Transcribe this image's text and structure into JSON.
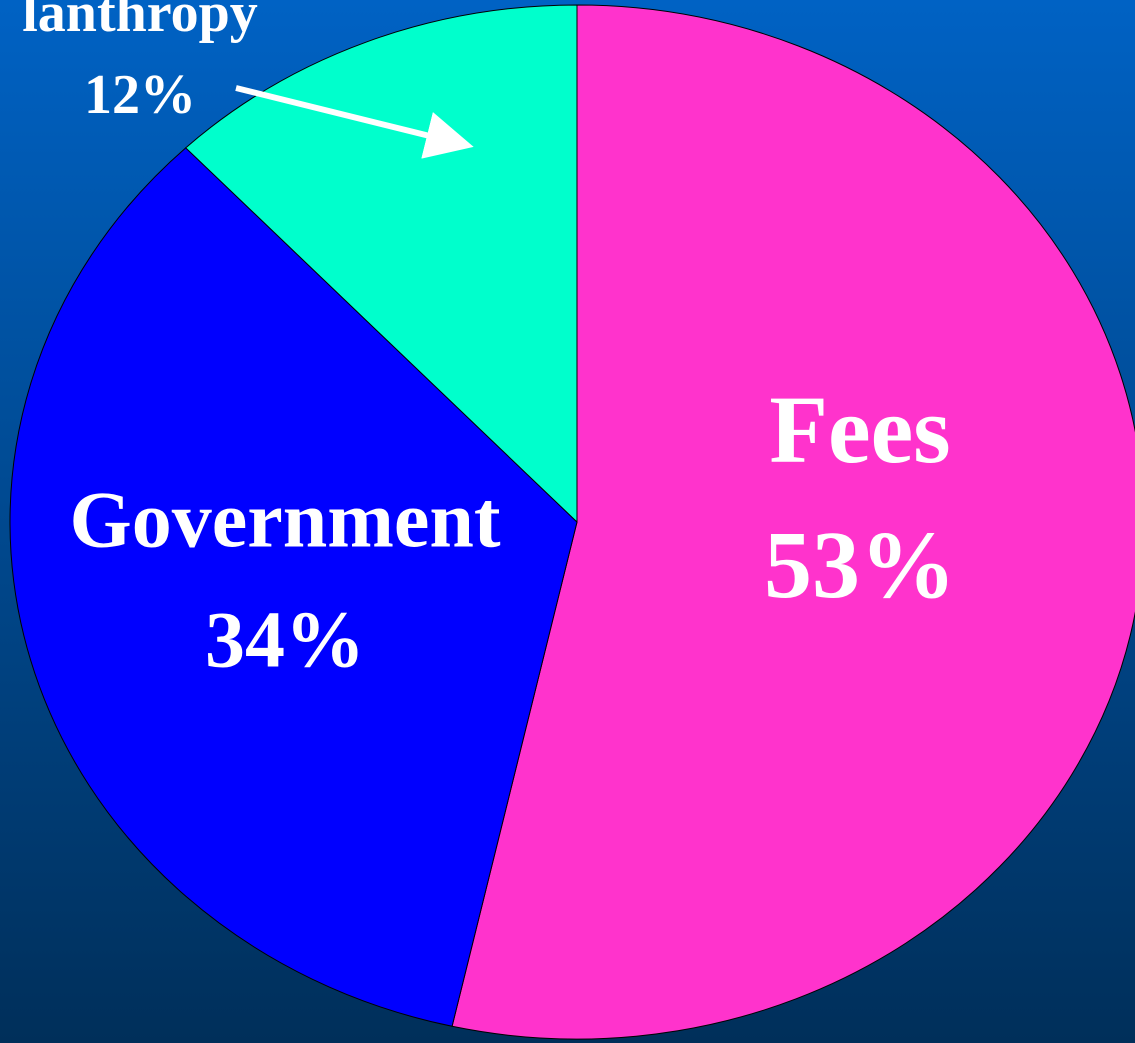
{
  "chart_data": {
    "type": "pie",
    "categories": [
      "Fees",
      "Government",
      "lanthropy"
    ],
    "values": [
      53,
      34,
      12
    ],
    "value_labels": [
      "53%",
      "34%",
      "12%"
    ],
    "colors": [
      "#ff33cc",
      "#0000ff",
      "#00ffcc"
    ]
  }
}
